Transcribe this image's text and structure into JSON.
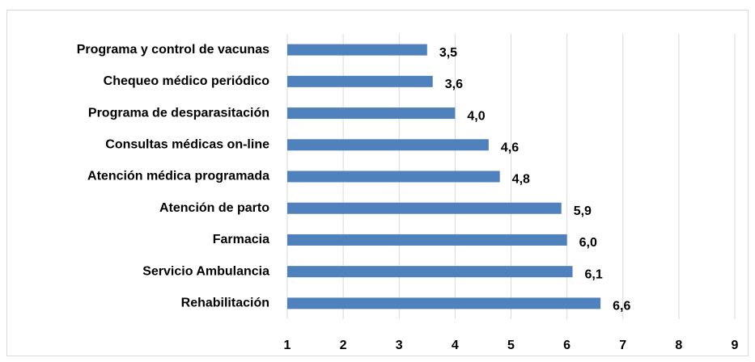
{
  "chart_data": {
    "type": "bar",
    "orientation": "horizontal",
    "categories": [
      "Programa y control de vacunas",
      "Chequeo médico periódico",
      "Programa de desparasitación",
      "Consultas médicas on-line",
      "Atención médica programada",
      "Atención de parto",
      "Farmacia",
      "Servicio Ambulancia",
      "Rehabilitación"
    ],
    "values": [
      3.5,
      3.6,
      4.0,
      4.6,
      4.8,
      5.9,
      6.0,
      6.1,
      6.6
    ],
    "value_labels": [
      "3,5",
      "3,6",
      "4,0",
      "4,6",
      "4,8",
      "5,9",
      "6,0",
      "6,1",
      "6,6"
    ],
    "color": "#4f81bd",
    "xlim": [
      1,
      9
    ],
    "xticks": [
      1,
      2,
      3,
      4,
      5,
      6,
      7,
      8,
      9
    ],
    "grid": true
  }
}
